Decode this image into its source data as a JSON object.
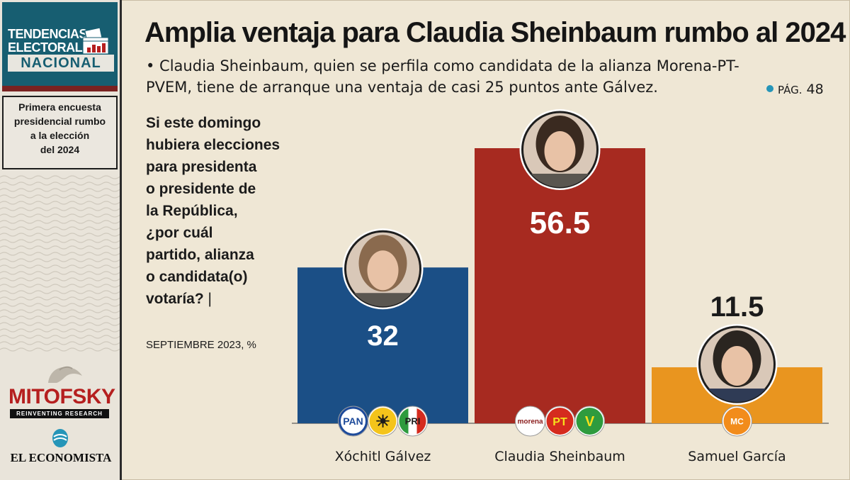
{
  "sidebar": {
    "brand_line1": "TENDENCIAS",
    "brand_line2": "ELECTORALES",
    "brand_line3": "NACIONAL",
    "box_text": "Primera encuesta\npresidencial rumbo\na la elección\ndel 2024",
    "pollster": "MITOFSKY",
    "pollster_tagline": "REINVENTING RESEARCH",
    "publisher": "EL ECONOMISTA"
  },
  "header": {
    "title": "Amplia ventaja para Claudia Sheinbaum rumbo al 2024",
    "subtitle": "• Claudia Sheinbaum, quien se perfila como candidata de la alianza Morena-PT-PVEM, tiene de arranque una ventaja de casi 25 puntos ante Gálvez.",
    "page_prefix": "PÁG.",
    "page_number": "48"
  },
  "question": {
    "text": "Si este domingo\nhubiera elecciones\npara presidenta\no presidente de\nla República,\n¿por cuál\npartido, alianza\no candidata(o)\nvotaría?",
    "separator": "|",
    "date": "SEPTIEMBRE 2023, %"
  },
  "chart_data": {
    "type": "bar",
    "categories": [
      "Xóchitl Gálvez",
      "Claudia Sheinbaum",
      "Samuel García"
    ],
    "values": [
      32,
      56.5,
      11.5
    ],
    "value_labels": [
      "32",
      "56.5",
      "11.5"
    ],
    "colors": [
      "#1b4f86",
      "#a72a20",
      "#e9951f"
    ],
    "party_logos": [
      [
        "PAN",
        "PRD",
        "PRI"
      ],
      [
        "morena",
        "PT",
        "PVEM"
      ],
      [
        "MOVIMIENTO CIUDADANO"
      ]
    ],
    "title": "",
    "xlabel": "",
    "ylabel": "",
    "ylim": [
      0,
      65
    ]
  }
}
